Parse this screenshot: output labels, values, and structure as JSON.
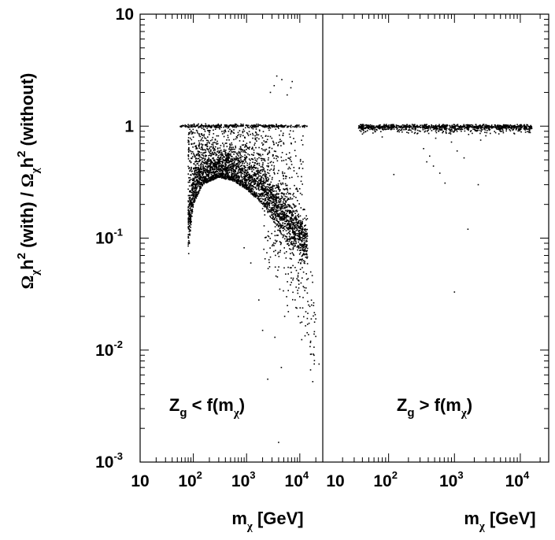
{
  "chart_data": {
    "type": "scatter",
    "x_scale": "log",
    "y_scale": "log",
    "ylabel": {
      "parts": [
        "Ω",
        "χ",
        "h",
        "2",
        " (with) / ",
        "Ω",
        "χ",
        "h",
        "2",
        " (without)"
      ]
    },
    "y_tick_labels": [
      {
        "value": 10,
        "base": "10",
        "exp": ""
      },
      {
        "value": 1,
        "base": "1",
        "exp": ""
      },
      {
        "value": 0.1,
        "base": "10",
        "exp": "-1"
      },
      {
        "value": 0.01,
        "base": "10",
        "exp": "-2"
      },
      {
        "value": 0.001,
        "base": "10",
        "exp": "-3"
      }
    ],
    "ylim": [
      0.001,
      10
    ],
    "panels": [
      {
        "id": "left",
        "xlabel": {
          "base": "m",
          "sub": "χ",
          "unit": " [GeV]"
        },
        "annotation": {
          "main": "Z",
          "sub": "g",
          "rest": " < f(m",
          "rest_sub": "χ",
          "close": ")"
        },
        "xlim": [
          10,
          27000
        ],
        "x_tick_labels": [
          {
            "value": 10,
            "base": "10",
            "exp": ""
          },
          {
            "value": 100,
            "base": "10",
            "exp": "2"
          },
          {
            "value": 1000,
            "base": "10",
            "exp": "3"
          },
          {
            "value": 10000,
            "base": "10",
            "exp": "4"
          }
        ],
        "x_tick_labels_extra": [
          {
            "value": 10000,
            "base": "10",
            "exp": ""
          }
        ],
        "regions": {
          "ceiling_line": {
            "y": 1.0,
            "x_range": [
              55,
              14000
            ]
          },
          "lower_envelope": {
            "x": [
              80,
              85,
              100,
              150,
              300,
              600,
              1000,
              2000,
              5000,
              10000,
              15000
            ],
            "y": [
              0.055,
              0.1,
              0.2,
              0.3,
              0.35,
              0.32,
              0.27,
              0.2,
              0.1,
              0.05,
              0.02
            ]
          },
          "dense_band": {
            "x": [
              85,
              100,
              150,
              200,
              400,
              700,
              1000,
              2000,
              4000,
              8000,
              12000
            ],
            "y": [
              0.14,
              0.27,
              0.36,
              0.38,
              0.4,
              0.38,
              0.35,
              0.28,
              0.18,
              0.12,
              0.09
            ]
          },
          "scattered_high": {
            "x_range": [
              80,
              12000
            ],
            "y_range": [
              0.3,
              2.7
            ]
          },
          "outliers": [
            {
              "x": 1700,
              "y": 0.028
            },
            {
              "x": 2000,
              "y": 0.015
            },
            {
              "x": 2500,
              "y": 0.0055
            },
            {
              "x": 3400,
              "y": 0.013
            },
            {
              "x": 4000,
              "y": 0.0015
            },
            {
              "x": 4500,
              "y": 0.007
            },
            {
              "x": 4200,
              "y": 0.035
            },
            {
              "x": 3800,
              "y": 0.045
            },
            {
              "x": 5200,
              "y": 0.02
            },
            {
              "x": 10000,
              "y": 0.03
            },
            {
              "x": 13000,
              "y": 0.022
            },
            {
              "x": 16000,
              "y": 0.012
            },
            {
              "x": 18500,
              "y": 0.009
            },
            {
              "x": 23000,
              "y": 0.0075
            },
            {
              "x": 20000,
              "y": 0.019
            },
            {
              "x": 14000,
              "y": 0.017
            },
            {
              "x": 1200,
              "y": 0.06
            },
            {
              "x": 900,
              "y": 0.082
            },
            {
              "x": 6800,
              "y": 2.2
            },
            {
              "x": 4600,
              "y": 2.6
            },
            {
              "x": 3700,
              "y": 2.8
            },
            {
              "x": 3300,
              "y": 2.3
            },
            {
              "x": 7200,
              "y": 2.5
            },
            {
              "x": 2800,
              "y": 2.0
            },
            {
              "x": 5800,
              "y": 1.9
            }
          ],
          "n_points_band": 2600,
          "n_points_scatter": 900
        }
      },
      {
        "id": "right",
        "xlabel": {
          "base": "m",
          "sub": "χ",
          "unit": " [GeV]"
        },
        "annotation": {
          "main": "Z",
          "sub": "g",
          "rest": " > f(m",
          "rest_sub": "χ",
          "close": ")"
        },
        "xlim": [
          10,
          27000
        ],
        "x_tick_labels": [
          {
            "value": 100,
            "base": "10",
            "exp": "2"
          },
          {
            "value": 1000,
            "base": "10",
            "exp": "3"
          },
          {
            "value": 10000,
            "base": "10",
            "exp": "4"
          }
        ],
        "regions": {
          "ceiling_line": {
            "y": 1.0,
            "x_range": [
              35,
              15000
            ]
          },
          "near_one_spread": {
            "x_range": [
              35,
              15000
            ],
            "y_range": [
              0.8,
              1.05
            ]
          },
          "outliers": [
            {
              "x": 40,
              "y": 0.85
            },
            {
              "x": 80,
              "y": 0.8
            },
            {
              "x": 120,
              "y": 0.37
            },
            {
              "x": 200,
              "y": 0.87
            },
            {
              "x": 340,
              "y": 0.63
            },
            {
              "x": 380,
              "y": 0.48
            },
            {
              "x": 420,
              "y": 0.54
            },
            {
              "x": 480,
              "y": 0.44
            },
            {
              "x": 520,
              "y": 0.78
            },
            {
              "x": 600,
              "y": 0.38
            },
            {
              "x": 720,
              "y": 0.31
            },
            {
              "x": 900,
              "y": 0.72
            },
            {
              "x": 1000,
              "y": 0.033
            },
            {
              "x": 1100,
              "y": 0.6
            },
            {
              "x": 1400,
              "y": 0.52
            },
            {
              "x": 1600,
              "y": 0.12
            },
            {
              "x": 2300,
              "y": 0.3
            },
            {
              "x": 2500,
              "y": 0.75
            },
            {
              "x": 3000,
              "y": 0.82
            },
            {
              "x": 5000,
              "y": 0.9
            }
          ],
          "n_points_band": 600
        }
      }
    ]
  }
}
